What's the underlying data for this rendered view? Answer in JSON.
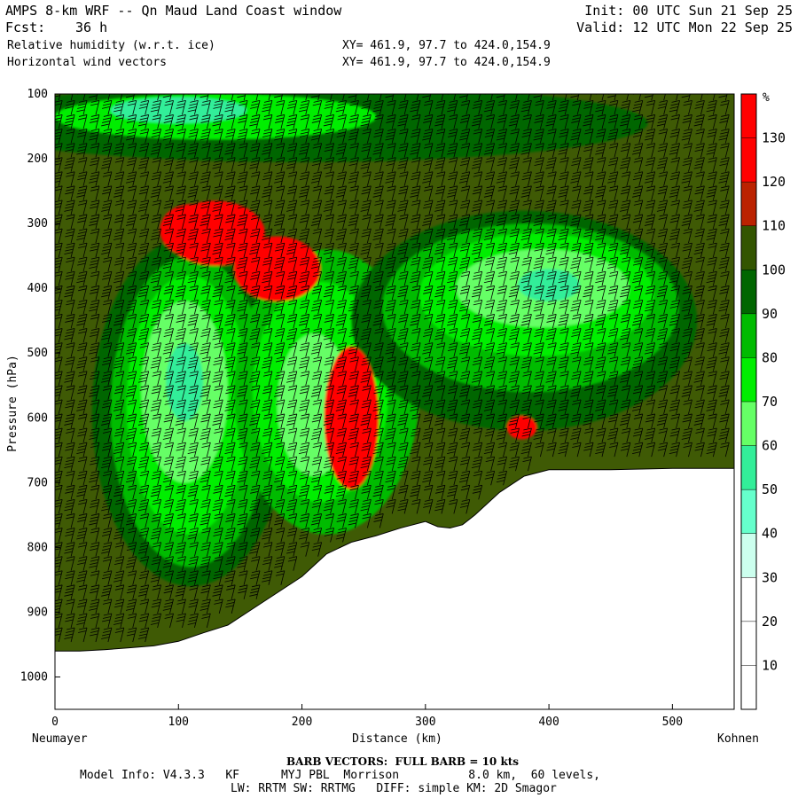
{
  "header": {
    "title": "AMPS 8-km WRF -- Qn Maud Land Coast window",
    "fcst_label": "Fcst:",
    "fcst_value": "36 h",
    "field1": "Relative humidity (w.r.t. ice)",
    "field2": "Horizontal wind vectors",
    "xy1": "XY= 461.9, 97.7 to 424.0,154.9",
    "xy2": "XY= 461.9, 97.7 to 424.0,154.9",
    "init": "Init: 00 UTC Sun 21 Sep 25",
    "valid": "Valid: 12 UTC Mon 22 Sep 25"
  },
  "footer": {
    "barb_note": "BARB VECTORS:  FULL BARB = 10 kts",
    "model_info_1": "Model Info: V4.3.3   KF      MYJ PBL  Morrison          8.0 km,  60 levels,",
    "model_info_2": "LW: RRTM SW: RRTMG   DIFF: simple KM: 2D Smagor"
  },
  "chart_data": {
    "type": "heatmap",
    "title": "Relative humidity (w.r.t. ice)",
    "xlabel": "Distance (km)",
    "ylabel": "Pressure (hPa)",
    "x_start_label": "Neumayer",
    "x_end_label": "Kohnen",
    "xlim": [
      0,
      550
    ],
    "ylim": [
      1050,
      100
    ],
    "x_ticks": [
      0,
      100,
      200,
      300,
      400,
      500
    ],
    "y_ticks": [
      100,
      200,
      300,
      400,
      500,
      600,
      700,
      800,
      900,
      1000
    ],
    "colorbar": {
      "unit": "%",
      "levels": [
        10,
        20,
        30,
        40,
        50,
        60,
        70,
        80,
        90,
        100,
        110,
        120,
        130
      ],
      "colors": [
        "#ffffff",
        "#ffffff",
        "#ffffff",
        "#ccffee",
        "#66ffcc",
        "#33ee99",
        "#66ff66",
        "#00ee00",
        "#00bb00",
        "#006600",
        "#335500",
        "#bb2200",
        "#ff0000",
        "#ff0000"
      ]
    },
    "background_rh_color": "#3f5a05",
    "terrain": {
      "x": [
        0,
        20,
        40,
        60,
        80,
        100,
        120,
        140,
        160,
        180,
        200,
        220,
        240,
        260,
        280,
        300,
        310,
        320,
        330,
        340,
        360,
        380,
        400,
        450,
        500,
        550
      ],
      "p": [
        960,
        960,
        958,
        955,
        952,
        945,
        932,
        920,
        895,
        870,
        845,
        810,
        792,
        782,
        770,
        760,
        768,
        770,
        765,
        750,
        715,
        690,
        680,
        680,
        678,
        678
      ]
    },
    "rh_regions": [
      {
        "name": "upper moist band",
        "level": 90,
        "cx": 200,
        "cp": 145,
        "rx": 280,
        "rp": 60
      },
      {
        "name": "upper moist band",
        "level": 70,
        "cx": 130,
        "cp": 135,
        "rx": 130,
        "rp": 35
      },
      {
        "name": "upper moist band",
        "level": 50,
        "cx": 100,
        "cp": 125,
        "rx": 55,
        "rp": 20
      },
      {
        "name": "left plume",
        "level": 90,
        "cx": 110,
        "cp": 590,
        "rx": 80,
        "rp": 270
      },
      {
        "name": "left plume",
        "level": 80,
        "cx": 110,
        "cp": 590,
        "rx": 65,
        "rp": 240
      },
      {
        "name": "left plume",
        "level": 70,
        "cx": 108,
        "cp": 580,
        "rx": 50,
        "rp": 200
      },
      {
        "name": "left plume",
        "level": 60,
        "cx": 105,
        "cp": 560,
        "rx": 35,
        "rp": 140
      },
      {
        "name": "left plume",
        "level": 50,
        "cx": 105,
        "cp": 545,
        "rx": 15,
        "rp": 60
      },
      {
        "name": "middle plume",
        "level": 80,
        "cx": 220,
        "cp": 560,
        "rx": 75,
        "rp": 220
      },
      {
        "name": "middle plume",
        "level": 70,
        "cx": 215,
        "cp": 560,
        "rx": 55,
        "rp": 170
      },
      {
        "name": "middle plume",
        "level": 60,
        "cx": 210,
        "cp": 580,
        "rx": 30,
        "rp": 110
      },
      {
        "name": "right arc",
        "level": 90,
        "cx": 380,
        "cp": 450,
        "rx": 140,
        "rp": 170
      },
      {
        "name": "right arc",
        "level": 80,
        "cx": 385,
        "cp": 430,
        "rx": 120,
        "rp": 130
      },
      {
        "name": "right arc",
        "level": 70,
        "cx": 390,
        "cp": 410,
        "rx": 95,
        "rp": 95
      },
      {
        "name": "right arc",
        "level": 60,
        "cx": 395,
        "cp": 400,
        "rx": 70,
        "rp": 60
      },
      {
        "name": "right arc",
        "level": 50,
        "cx": 400,
        "cp": 395,
        "rx": 25,
        "rp": 25
      },
      {
        "name": "upper-left supersaturation",
        "level": 120,
        "cx": 130,
        "cp": 315,
        "rx": 40,
        "rp": 50
      },
      {
        "name": "upper-left supersaturation",
        "level": 130,
        "cx": 110,
        "cp": 310,
        "rx": 25,
        "rp": 40
      },
      {
        "name": "mid supersaturation",
        "level": 120,
        "cx": 180,
        "cp": 370,
        "rx": 35,
        "rp": 50
      },
      {
        "name": "lower supersaturation",
        "level": 120,
        "cx": 240,
        "cp": 600,
        "rx": 22,
        "rp": 110
      },
      {
        "name": "small supersaturation",
        "level": 120,
        "cx": 378,
        "cp": 615,
        "rx": 12,
        "rp": 18
      }
    ]
  }
}
